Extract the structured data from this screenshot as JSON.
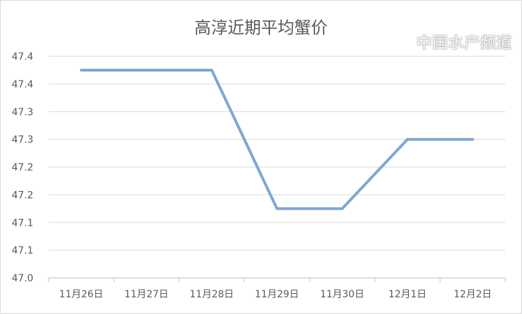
{
  "chart_data": {
    "type": "line",
    "title": "高淳近期平均蟹价",
    "categories": [
      "11月26日",
      "11月27日",
      "11月28日",
      "11月29日",
      "11月30日",
      "12月1日",
      "12月2日"
    ],
    "series": [
      {
        "values": [
          47.375,
          47.375,
          47.375,
          47.125,
          47.125,
          47.25,
          47.25
        ],
        "color": "#7ea6d3"
      }
    ],
    "ylim": [
      47.0,
      47.4
    ],
    "yticks": [
      47.0,
      47.05,
      47.1,
      47.15,
      47.2,
      47.25,
      47.3,
      47.35,
      47.4
    ],
    "ytick_labels": [
      "47.0",
      "47.1",
      "47.1",
      "47.2",
      "47.2",
      "47.3",
      "47.3",
      "47.4",
      "47.4"
    ],
    "grid": true,
    "legend": "none"
  },
  "watermark": "中国水产频道"
}
